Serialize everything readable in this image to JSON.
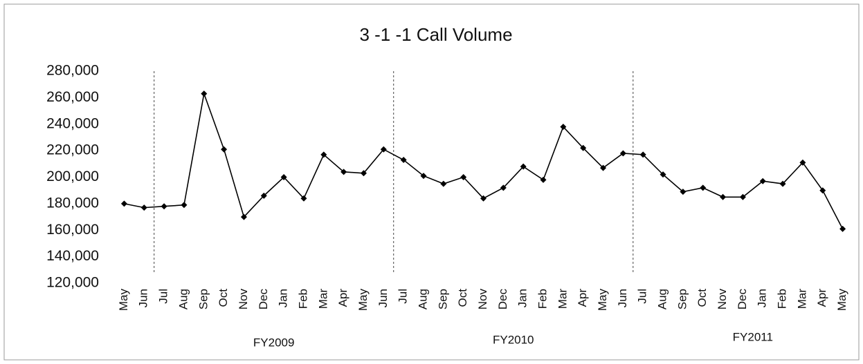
{
  "chart_data": {
    "type": "line",
    "title": "3 -1 -1 Call Volume",
    "categories": [
      "May",
      "Jun",
      "Jul",
      "Aug",
      "Sep",
      "Oct",
      "Nov",
      "Dec",
      "Jan",
      "Feb",
      "Mar",
      "Apr",
      "May",
      "Jun",
      "Jul",
      "Aug",
      "Sep",
      "Oct",
      "Nov",
      "Dec",
      "Jan",
      "Feb",
      "Mar",
      "Apr",
      "May",
      "Jun",
      "Jul",
      "Aug",
      "Sep",
      "Oct",
      "Nov",
      "Dec",
      "Jan",
      "Feb",
      "Mar",
      "Apr",
      "May"
    ],
    "series": [
      {
        "name": "Call Volume",
        "color": "#000000",
        "values": [
          180000,
          177000,
          178000,
          179000,
          263000,
          221000,
          170000,
          186000,
          200000,
          184000,
          217000,
          204000,
          203000,
          221000,
          213000,
          201000,
          195000,
          200000,
          184000,
          192000,
          208000,
          198000,
          238000,
          222000,
          207000,
          218000,
          217000,
          202000,
          189000,
          192000,
          185000,
          185000,
          197000,
          195000,
          211000,
          190000,
          161000
        ]
      }
    ],
    "group_labels": [
      "FY2009",
      "FY2010",
      "FY2011"
    ],
    "ylim": [
      120000,
      280000
    ],
    "yticks": [
      {
        "value": 120000,
        "label": "120,000"
      },
      {
        "value": 140000,
        "label": "140,000"
      },
      {
        "value": 160000,
        "label": "160,000"
      },
      {
        "value": 180000,
        "label": "180,000"
      },
      {
        "value": 200000,
        "label": "200,000"
      },
      {
        "value": 220000,
        "label": "220,000"
      },
      {
        "value": 240000,
        "label": "240,000"
      },
      {
        "value": 260000,
        "label": "260,000"
      },
      {
        "value": 280000,
        "label": "280,000"
      }
    ],
    "grid": false
  }
}
